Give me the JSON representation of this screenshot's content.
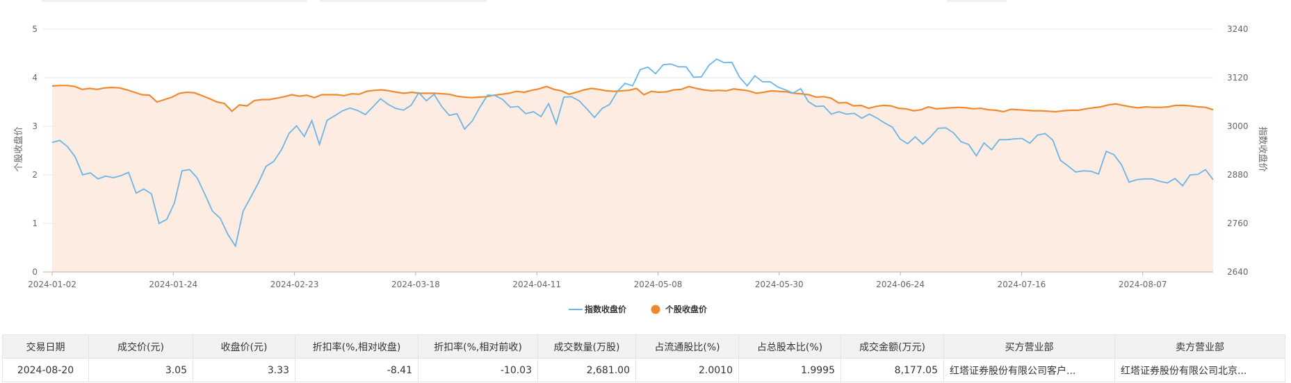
{
  "chart_data": {
    "type": "line",
    "x_ticks": [
      "2024-01-02",
      "2024-01-24",
      "2024-02-23",
      "2024-03-18",
      "2024-04-11",
      "2024-05-08",
      "2024-05-30",
      "2024-06-24",
      "2024-07-16",
      "2024-08-07"
    ],
    "y_left": {
      "label": "个股收盘价",
      "ticks": [
        "0",
        "1",
        "2",
        "3",
        "4",
        "5"
      ],
      "range": [
        0,
        5
      ]
    },
    "y_right": {
      "label": "指数收盘价",
      "ticks": [
        "2640",
        "2760",
        "2880",
        "3000",
        "3120",
        "3240"
      ],
      "range": [
        2640,
        3240
      ]
    },
    "legend_position": "bottom-center",
    "series": [
      {
        "name": "指数收盘价",
        "axis": "right",
        "color": "#6cb4e8",
        "values": [
          2960,
          2965,
          2950,
          2925,
          2880,
          2885,
          2870,
          2877,
          2873,
          2878,
          2886,
          2835,
          2845,
          2833,
          2760,
          2770,
          2810,
          2890,
          2893,
          2872,
          2832,
          2790,
          2773,
          2733,
          2704,
          2790,
          2825,
          2860,
          2901,
          2913,
          2941,
          2982,
          3001,
          2975,
          3014,
          2955,
          3015,
          3026,
          3038,
          3045,
          3039,
          3029,
          3048,
          3068,
          3054,
          3044,
          3040,
          3052,
          3083,
          3063,
          3079,
          3049,
          3027,
          3031,
          2993,
          3013,
          3047,
          3077,
          3076,
          3066,
          3047,
          3049,
          3031,
          3036,
          3024,
          3056,
          3006,
          3072,
          3073,
          3063,
          3043,
          3022,
          3044,
          3054,
          3086,
          3106,
          3100,
          3140,
          3146,
          3130,
          3152,
          3154,
          3147,
          3147,
          3121,
          3122,
          3151,
          3166,
          3157,
          3158,
          3121,
          3100,
          3125,
          3110,
          3110,
          3097,
          3090,
          3082,
          3093,
          3061,
          3049,
          3050,
          3030,
          3036,
          3030,
          3032,
          3020,
          3030,
          3020,
          3008,
          2998,
          2969,
          2957,
          2974,
          2956,
          2974,
          2995,
          2996,
          2984,
          2962,
          2955,
          2927,
          2959,
          2942,
          2967,
          2967,
          2969,
          2970,
          2958,
          2978,
          2982,
          2966,
          2916,
          2902,
          2887,
          2890,
          2889,
          2882,
          2938,
          2930,
          2905,
          2862,
          2868,
          2870,
          2870,
          2864,
          2860,
          2871,
          2853,
          2880,
          2881,
          2893,
          2868
        ]
      },
      {
        "name": "个股收盘价",
        "axis": "left",
        "color": "#f0892e",
        "values": [
          3.83,
          3.84,
          3.84,
          3.82,
          3.76,
          3.78,
          3.76,
          3.79,
          3.8,
          3.79,
          3.75,
          3.7,
          3.65,
          3.64,
          3.5,
          3.55,
          3.6,
          3.68,
          3.7,
          3.69,
          3.63,
          3.57,
          3.5,
          3.47,
          3.31,
          3.44,
          3.42,
          3.53,
          3.55,
          3.55,
          3.58,
          3.61,
          3.65,
          3.62,
          3.64,
          3.59,
          3.65,
          3.65,
          3.65,
          3.63,
          3.67,
          3.66,
          3.72,
          3.74,
          3.75,
          3.73,
          3.7,
          3.68,
          3.7,
          3.68,
          3.68,
          3.68,
          3.67,
          3.66,
          3.62,
          3.6,
          3.59,
          3.6,
          3.61,
          3.64,
          3.66,
          3.68,
          3.72,
          3.7,
          3.74,
          3.77,
          3.82,
          3.76,
          3.73,
          3.66,
          3.7,
          3.75,
          3.78,
          3.76,
          3.73,
          3.72,
          3.73,
          3.74,
          3.78,
          3.65,
          3.72,
          3.7,
          3.71,
          3.75,
          3.76,
          3.82,
          3.78,
          3.75,
          3.73,
          3.74,
          3.73,
          3.77,
          3.75,
          3.73,
          3.68,
          3.7,
          3.73,
          3.72,
          3.71,
          3.68,
          3.67,
          3.65,
          3.6,
          3.61,
          3.58,
          3.48,
          3.49,
          3.42,
          3.43,
          3.37,
          3.41,
          3.43,
          3.42,
          3.37,
          3.36,
          3.32,
          3.34,
          3.4,
          3.36,
          3.37,
          3.38,
          3.39,
          3.38,
          3.36,
          3.37,
          3.34,
          3.33,
          3.3,
          3.35,
          3.34,
          3.33,
          3.32,
          3.32,
          3.31,
          3.3,
          3.32,
          3.33,
          3.33,
          3.36,
          3.38,
          3.4,
          3.44,
          3.46,
          3.43,
          3.4,
          3.38,
          3.4,
          3.39,
          3.39,
          3.4,
          3.43,
          3.43,
          3.42,
          3.4,
          3.39,
          3.34
        ]
      }
    ]
  },
  "table": {
    "headers": [
      "交易日期",
      "成交价(元)",
      "收盘价(元)",
      "折扣率(%,相对收盘)",
      "折扣率(%,相对前收)",
      "成交数量(万股)",
      "占流通股比(%)",
      "占总股本比(%)",
      "成交金额(万元)",
      "买方营业部",
      "卖方营业部"
    ],
    "rows": [
      [
        "2024-08-20",
        "3.05",
        "3.33",
        "-8.41",
        "-10.03",
        "2,681.00",
        "2.0010",
        "1.9995",
        "8,177.05",
        "红塔证券股份有限公司客户...",
        "红塔证券股份有限公司北京..."
      ]
    ]
  }
}
